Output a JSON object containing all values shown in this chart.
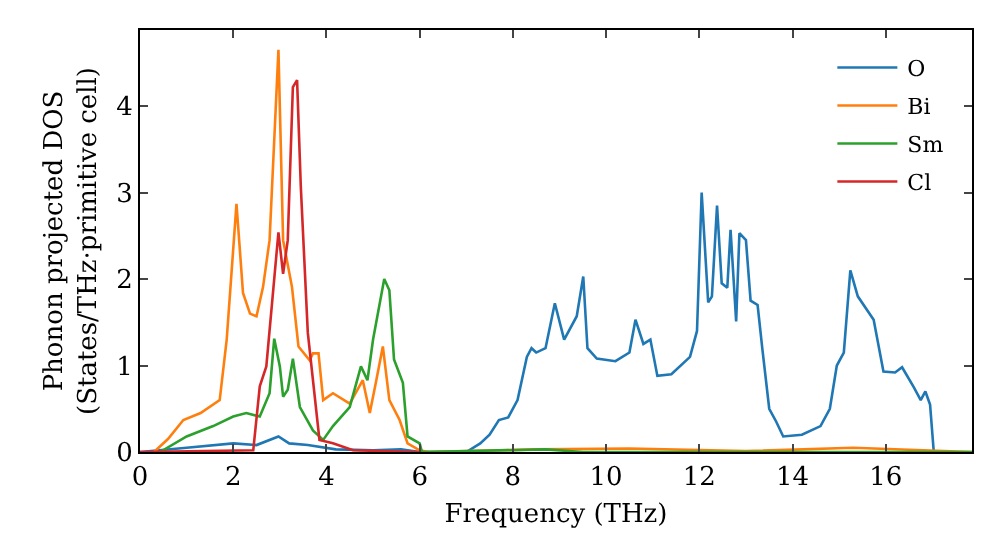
{
  "chart_data": {
    "type": "line",
    "xlabel": "Frequency (THz)",
    "ylabel": "Phonon projected DOS\n(States/THz·primitive cell)",
    "xlim": [
      0,
      17.85
    ],
    "ylim": [
      0,
      4.88
    ],
    "xticks": [
      0,
      2,
      4,
      6,
      8,
      10,
      12,
      14,
      16
    ],
    "yticks": [
      0,
      1,
      2,
      3,
      4
    ],
    "grid": false,
    "legend": "top right",
    "marker": "none",
    "line_style": "solid",
    "series": [
      {
        "name": "O",
        "color": "#1f77b4",
        "x": [
          0,
          1,
          2,
          2.5,
          2.97,
          3.2,
          3.6,
          4.2,
          5,
          5.6,
          6,
          7,
          7.3,
          7.5,
          7.7,
          7.9,
          8.1,
          8.3,
          8.4,
          8.5,
          8.7,
          8.9,
          9.1,
          9.37,
          9.51,
          9.6,
          9.8,
          10.2,
          10.5,
          10.63,
          10.8,
          10.95,
          11.1,
          11.4,
          11.8,
          11.95,
          12.05,
          12.19,
          12.27,
          12.38,
          12.48,
          12.6,
          12.67,
          12.79,
          12.86,
          13.0,
          13.1,
          13.25,
          13.35,
          13.5,
          13.65,
          13.8,
          14.2,
          14.6,
          14.8,
          14.95,
          15.1,
          15.24,
          15.4,
          15.74,
          15.95,
          16.2,
          16.35,
          16.6,
          16.75,
          16.85,
          16.95,
          17.03
        ],
        "values": [
          0,
          0.05,
          0.1,
          0.08,
          0.18,
          0.1,
          0.08,
          0.03,
          0.02,
          0.03,
          0,
          0,
          0.1,
          0.2,
          0.37,
          0.4,
          0.6,
          1.1,
          1.2,
          1.15,
          1.2,
          1.72,
          1.3,
          1.57,
          2.03,
          1.2,
          1.08,
          1.05,
          1.15,
          1.53,
          1.25,
          1.3,
          0.88,
          0.9,
          1.1,
          1.4,
          3.0,
          1.73,
          1.8,
          2.85,
          1.95,
          1.9,
          2.57,
          1.51,
          2.53,
          2.45,
          1.75,
          1.7,
          1.2,
          0.5,
          0.35,
          0.18,
          0.2,
          0.3,
          0.5,
          1.0,
          1.15,
          2.1,
          1.8,
          1.53,
          0.93,
          0.92,
          0.98,
          0.75,
          0.6,
          0.7,
          0.55,
          0
        ]
      },
      {
        "name": "Bi",
        "color": "#ff7f0e",
        "x": [
          0.3,
          0.6,
          0.93,
          1.3,
          1.71,
          1.86,
          2.07,
          2.21,
          2.36,
          2.5,
          2.64,
          2.78,
          2.97,
          3.07,
          3.26,
          3.4,
          3.64,
          3.71,
          3.83,
          3.93,
          4.14,
          4.5,
          4.78,
          4.93,
          5.07,
          5.21,
          5.35,
          5.57,
          5.74,
          6.0,
          6.2,
          8.5,
          10.5,
          13,
          15.3,
          17.85
        ],
        "values": [
          0,
          0.15,
          0.37,
          0.45,
          0.6,
          1.3,
          2.87,
          1.84,
          1.6,
          1.57,
          1.91,
          2.45,
          4.65,
          2.45,
          1.91,
          1.22,
          1.06,
          1.14,
          1.14,
          0.6,
          0.68,
          0.56,
          0.83,
          0.45,
          0.83,
          1.22,
          0.6,
          0.37,
          0.1,
          0.02,
          0,
          0.03,
          0.04,
          0.01,
          0.05,
          0
        ]
      },
      {
        "name": "Sm",
        "color": "#2ca02c",
        "x": [
          0.43,
          1.0,
          1.57,
          2.0,
          2.28,
          2.57,
          2.78,
          2.88,
          3.0,
          3.07,
          3.17,
          3.28,
          3.43,
          3.71,
          3.93,
          4.14,
          4.5,
          4.74,
          4.88,
          5.0,
          5.24,
          5.35,
          5.45,
          5.64,
          5.74,
          6.0,
          6.05,
          8.7,
          9.5,
          17.85
        ],
        "values": [
          0,
          0.18,
          0.3,
          0.41,
          0.45,
          0.41,
          0.68,
          1.31,
          0.99,
          0.64,
          0.72,
          1.08,
          0.52,
          0.25,
          0.14,
          0.3,
          0.52,
          0.99,
          0.83,
          1.3,
          2.0,
          1.87,
          1.07,
          0.8,
          0.18,
          0.1,
          0,
          0.03,
          0,
          0
        ]
      },
      {
        "name": "Cl",
        "color": "#d62728",
        "x": [
          0,
          2.43,
          2.57,
          2.71,
          2.97,
          3.07,
          3.17,
          3.28,
          3.37,
          3.45,
          3.6,
          3.85,
          4.14,
          4.57,
          6.0
        ],
        "values": [
          0,
          0.02,
          0.76,
          0.99,
          2.54,
          2.06,
          2.45,
          4.22,
          4.3,
          3.07,
          1.38,
          0.14,
          0.1,
          0.02,
          0
        ]
      }
    ]
  }
}
